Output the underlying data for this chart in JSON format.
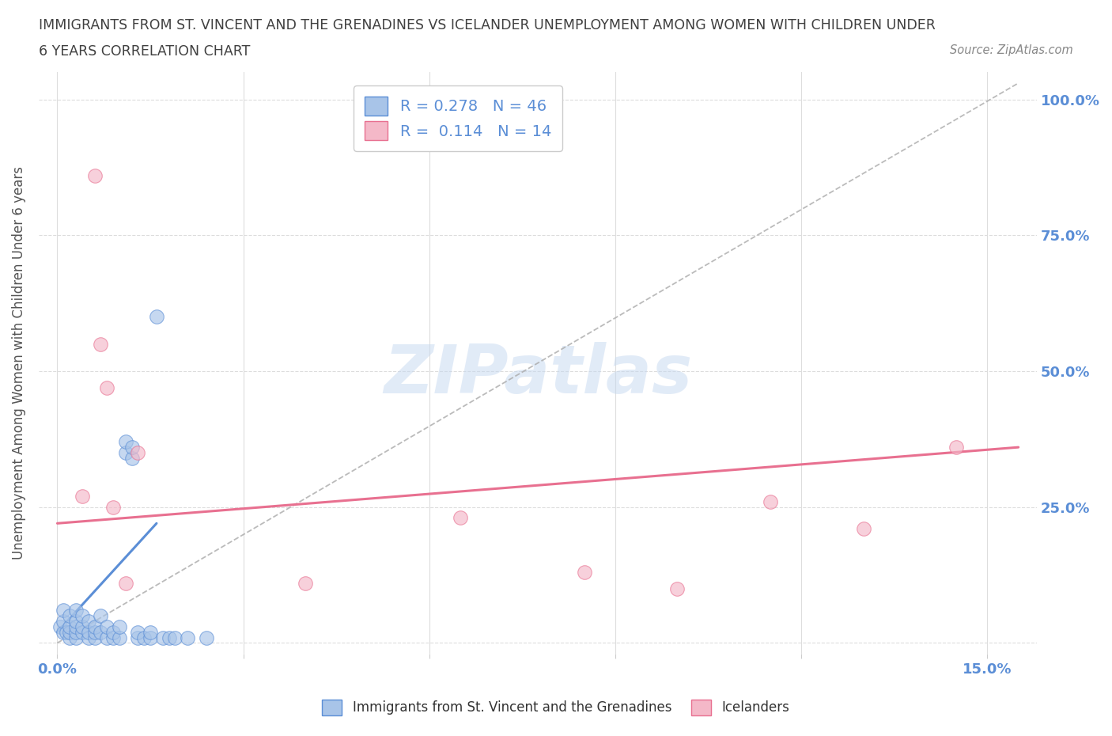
{
  "title_line1": "IMMIGRANTS FROM ST. VINCENT AND THE GRENADINES VS ICELANDER UNEMPLOYMENT AMONG WOMEN WITH CHILDREN UNDER",
  "title_line2": "6 YEARS CORRELATION CHART",
  "source": "Source: ZipAtlas.com",
  "xlim": [
    -0.003,
    0.158
  ],
  "ylim": [
    -0.02,
    1.05
  ],
  "blue_R": 0.278,
  "blue_N": 46,
  "pink_R": 0.114,
  "pink_N": 14,
  "blue_color": "#a8c4e8",
  "blue_dark": "#5b8ed6",
  "pink_color": "#f4b8c8",
  "pink_dark": "#e87090",
  "blue_scatter_x": [
    0.0005,
    0.001,
    0.001,
    0.001,
    0.0015,
    0.002,
    0.002,
    0.002,
    0.002,
    0.003,
    0.003,
    0.003,
    0.003,
    0.003,
    0.004,
    0.004,
    0.004,
    0.005,
    0.005,
    0.005,
    0.006,
    0.006,
    0.006,
    0.007,
    0.007,
    0.008,
    0.008,
    0.009,
    0.009,
    0.01,
    0.01,
    0.011,
    0.011,
    0.012,
    0.012,
    0.013,
    0.013,
    0.014,
    0.015,
    0.015,
    0.016,
    0.017,
    0.018,
    0.019,
    0.021,
    0.024
  ],
  "blue_scatter_y": [
    0.03,
    0.02,
    0.04,
    0.06,
    0.02,
    0.01,
    0.02,
    0.03,
    0.05,
    0.01,
    0.02,
    0.03,
    0.04,
    0.06,
    0.02,
    0.03,
    0.05,
    0.01,
    0.02,
    0.04,
    0.01,
    0.02,
    0.03,
    0.02,
    0.05,
    0.01,
    0.03,
    0.01,
    0.02,
    0.01,
    0.03,
    0.35,
    0.37,
    0.34,
    0.36,
    0.01,
    0.02,
    0.01,
    0.01,
    0.02,
    0.6,
    0.01,
    0.01,
    0.01,
    0.01,
    0.01
  ],
  "pink_scatter_x": [
    0.004,
    0.006,
    0.007,
    0.008,
    0.009,
    0.011,
    0.013,
    0.04,
    0.065,
    0.085,
    0.1,
    0.115,
    0.13,
    0.145
  ],
  "pink_scatter_y": [
    0.27,
    0.86,
    0.55,
    0.47,
    0.25,
    0.11,
    0.35,
    0.11,
    0.23,
    0.13,
    0.1,
    0.26,
    0.21,
    0.36
  ],
  "blue_trend_x": [
    0.0,
    0.016
  ],
  "blue_trend_y": [
    0.02,
    0.22
  ],
  "pink_trend_x": [
    0.0,
    0.155
  ],
  "pink_trend_y": [
    0.22,
    0.36
  ],
  "ref_line_x": [
    0.0,
    0.155
  ],
  "ref_line_y": [
    0.0,
    1.03
  ],
  "legend_label_blue": "Immigrants from St. Vincent and the Grenadines",
  "legend_label_pink": "Icelanders",
  "ylabel": "Unemployment Among Women with Children Under 6 years",
  "xtick_labels": [
    "0.0%",
    "",
    "",
    "",
    "",
    "15.0%"
  ],
  "xtick_vals": [
    0.0,
    0.03,
    0.06,
    0.09,
    0.12,
    0.15
  ],
  "ytick_vals": [
    0.0,
    0.25,
    0.5,
    0.75,
    1.0
  ],
  "ytick_labels_right": [
    "",
    "25.0%",
    "50.0%",
    "75.0%",
    "100.0%"
  ],
  "background_color": "#ffffff",
  "grid_color": "#dddddd",
  "title_color": "#404040",
  "tick_color": "#5b8ed6",
  "watermark_color": "#c5d8f0",
  "watermark_text": "ZIPatlas"
}
